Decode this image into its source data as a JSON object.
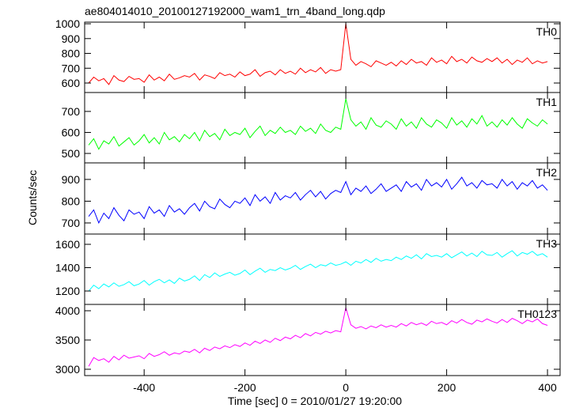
{
  "title": "ae804014010_20100127192000_wam1_trn_4band_long.qdp",
  "x_label": "Time [sec] 0 = 2010/01/27 19:20:00",
  "y_label": "Counts/sec",
  "xlim": [
    -518,
    425
  ],
  "xticks": [
    -400,
    -200,
    0,
    200,
    400
  ],
  "x": [
    -510,
    -500,
    -490,
    -480,
    -470,
    -460,
    -450,
    -440,
    -430,
    -420,
    -410,
    -400,
    -390,
    -380,
    -370,
    -360,
    -350,
    -340,
    -330,
    -320,
    -310,
    -300,
    -290,
    -280,
    -270,
    -260,
    -250,
    -240,
    -230,
    -220,
    -210,
    -200,
    -190,
    -180,
    -170,
    -160,
    -150,
    -140,
    -130,
    -120,
    -110,
    -100,
    -90,
    -80,
    -70,
    -60,
    -50,
    -40,
    -30,
    -20,
    -10,
    0,
    10,
    20,
    30,
    40,
    50,
    60,
    70,
    80,
    90,
    100,
    110,
    120,
    130,
    140,
    150,
    160,
    170,
    180,
    190,
    200,
    210,
    220,
    230,
    240,
    250,
    260,
    270,
    280,
    290,
    300,
    310,
    320,
    330,
    340,
    350,
    360,
    370,
    380,
    390,
    400
  ],
  "chart_data": [
    {
      "type": "line",
      "ylim": [
        536,
        1011
      ],
      "yticks": [
        600,
        700,
        800,
        900,
        1000
      ],
      "series": [
        {
          "name": "TH0",
          "color": "#ff0000",
          "values": [
            600,
            640,
            615,
            630,
            590,
            650,
            620,
            610,
            645,
            625,
            630,
            605,
            655,
            620,
            640,
            615,
            660,
            625,
            635,
            650,
            640,
            665,
            620,
            655,
            645,
            630,
            670,
            650,
            660,
            640,
            675,
            650,
            660,
            690,
            645,
            670,
            680,
            655,
            690,
            665,
            680,
            660,
            700,
            670,
            690,
            675,
            705,
            665,
            690,
            680,
            690,
            1000,
            760,
            720,
            745,
            730,
            710,
            750,
            735,
            720,
            740,
            715,
            750,
            725,
            760,
            735,
            745,
            720,
            770,
            740,
            755,
            730,
            780,
            745,
            760,
            735,
            775,
            750,
            740,
            765,
            745,
            770,
            735,
            760,
            725,
            755,
            740,
            770,
            730,
            750,
            735,
            745
          ]
        }
      ]
    },
    {
      "type": "line",
      "ylim": [
        455,
        790
      ],
      "yticks": [
        500,
        600,
        700
      ],
      "series": [
        {
          "name": "TH1",
          "color": "#00ff00",
          "values": [
            540,
            570,
            520,
            560,
            545,
            580,
            535,
            555,
            575,
            540,
            560,
            590,
            550,
            575,
            545,
            600,
            565,
            580,
            555,
            590,
            570,
            600,
            560,
            610,
            580,
            595,
            565,
            615,
            585,
            600,
            590,
            620,
            575,
            605,
            630,
            585,
            610,
            595,
            625,
            600,
            610,
            590,
            630,
            605,
            620,
            595,
            640,
            610,
            600,
            625,
            615,
            760,
            660,
            630,
            650,
            615,
            670,
            635,
            625,
            655,
            640,
            615,
            665,
            630,
            650,
            620,
            670,
            640,
            625,
            660,
            645,
            620,
            670,
            635,
            655,
            625,
            665,
            640,
            680,
            630,
            650,
            625,
            660,
            635,
            670,
            640,
            620,
            665,
            645,
            630,
            660,
            640
          ]
        }
      ]
    },
    {
      "type": "line",
      "ylim": [
        649,
        976
      ],
      "yticks": [
        700,
        800,
        900
      ],
      "series": [
        {
          "name": "TH2",
          "color": "#0000ff",
          "values": [
            730,
            760,
            700,
            745,
            720,
            770,
            735,
            710,
            760,
            740,
            750,
            720,
            775,
            745,
            760,
            730,
            780,
            750,
            765,
            740,
            770,
            790,
            755,
            800,
            775,
            765,
            810,
            785,
            770,
            800,
            790,
            815,
            780,
            830,
            800,
            820,
            790,
            840,
            805,
            825,
            815,
            840,
            805,
            830,
            850,
            820,
            845,
            810,
            835,
            850,
            840,
            890,
            830,
            860,
            845,
            870,
            835,
            855,
            880,
            845,
            860,
            875,
            845,
            890,
            865,
            880,
            850,
            900,
            870,
            885,
            865,
            900,
            855,
            880,
            910,
            870,
            885,
            860,
            895,
            875,
            880,
            860,
            900,
            870,
            890,
            855,
            885,
            870,
            895,
            860,
            875,
            850
          ]
        }
      ]
    },
    {
      "type": "line",
      "ylim": [
        1085,
        1688
      ],
      "yticks": [
        1200,
        1400,
        1600
      ],
      "series": [
        {
          "name": "TH3",
          "color": "#00ffff",
          "values": [
            1200,
            1250,
            1220,
            1260,
            1235,
            1270,
            1240,
            1255,
            1280,
            1245,
            1260,
            1290,
            1250,
            1280,
            1300,
            1270,
            1295,
            1265,
            1310,
            1285,
            1300,
            1330,
            1290,
            1340,
            1315,
            1355,
            1325,
            1345,
            1360,
            1335,
            1350,
            1380,
            1340,
            1370,
            1395,
            1360,
            1385,
            1375,
            1400,
            1380,
            1395,
            1420,
            1385,
            1410,
            1430,
            1400,
            1425,
            1415,
            1440,
            1420,
            1430,
            1450,
            1420,
            1455,
            1440,
            1470,
            1445,
            1480,
            1455,
            1470,
            1460,
            1490,
            1470,
            1500,
            1480,
            1510,
            1475,
            1520,
            1495,
            1505,
            1490,
            1520,
            1485,
            1510,
            1535,
            1500,
            1525,
            1495,
            1540,
            1510,
            1505,
            1530,
            1490,
            1520,
            1545,
            1500,
            1530,
            1515,
            1540,
            1505,
            1520,
            1490
          ]
        }
      ]
    },
    {
      "type": "line",
      "ylim": [
        2892,
        4108
      ],
      "yticks": [
        3000,
        3500,
        4000
      ],
      "series": [
        {
          "name": "TH0123",
          "color": "#ff00ff",
          "values": [
            3050,
            3200,
            3150,
            3180,
            3120,
            3220,
            3160,
            3240,
            3190,
            3210,
            3230,
            3180,
            3270,
            3220,
            3250,
            3300,
            3240,
            3280,
            3260,
            3310,
            3290,
            3340,
            3280,
            3360,
            3320,
            3380,
            3350,
            3400,
            3370,
            3420,
            3390,
            3450,
            3410,
            3480,
            3440,
            3500,
            3460,
            3530,
            3490,
            3550,
            3520,
            3580,
            3540,
            3610,
            3570,
            3630,
            3600,
            3650,
            3620,
            3660,
            3640,
            4050,
            3760,
            3700,
            3730,
            3690,
            3740,
            3710,
            3760,
            3720,
            3750,
            3720,
            3780,
            3740,
            3800,
            3760,
            3790,
            3750,
            3820,
            3780,
            3800,
            3760,
            3830,
            3790,
            3850,
            3800,
            3770,
            3840,
            3810,
            3860,
            3820,
            3790,
            3850,
            3800,
            3870,
            3830,
            3780,
            3840,
            3810,
            3860,
            3780,
            3750
          ]
        }
      ]
    }
  ]
}
